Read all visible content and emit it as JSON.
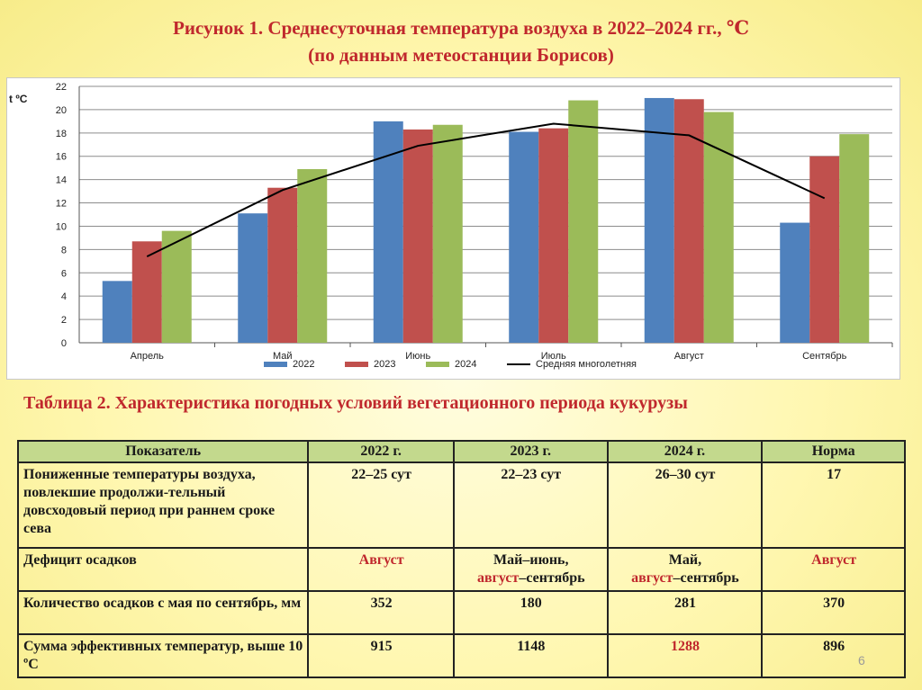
{
  "slide": {
    "title_line1": "Рисунок 1. Среднесуточная температура воздуха в 2022–2024 гг., ℃",
    "title_line2": "(по данным метеостанции Борисов)",
    "page_number": "6"
  },
  "chart_data": {
    "type": "bar",
    "ylabel": "t ºC",
    "ylim": [
      0,
      22
    ],
    "yticks": [
      0,
      2,
      4,
      6,
      8,
      10,
      12,
      14,
      16,
      18,
      20,
      22
    ],
    "categories": [
      "Апрель",
      "Май",
      "Июнь",
      "Июль",
      "Август",
      "Сентябрь"
    ],
    "series": [
      {
        "name": "2022",
        "type": "bar",
        "color": "#4f81bd",
        "values": [
          5.3,
          11.1,
          19.0,
          18.1,
          21.0,
          10.3
        ]
      },
      {
        "name": "2023",
        "type": "bar",
        "color": "#c0504d",
        "values": [
          8.7,
          13.3,
          18.3,
          18.4,
          20.9,
          16.0
        ]
      },
      {
        "name": "2024",
        "type": "bar",
        "color": "#9bbb59",
        "values": [
          9.6,
          14.9,
          18.7,
          20.8,
          19.8,
          17.9
        ]
      },
      {
        "name": "Средняя многолетняя",
        "type": "line",
        "color": "#000000",
        "values": [
          7.4,
          13.1,
          16.9,
          18.8,
          17.8,
          12.4
        ]
      }
    ],
    "grid": true,
    "legend_position": "bottom"
  },
  "table": {
    "title": "Таблица 2. Характеристика погодных условий вегетационного периода кукурузы",
    "headers": [
      "Показатель",
      "2022 г.",
      "2023 г.",
      "2024 г.",
      "Норма"
    ],
    "rows": [
      {
        "indicator": "Пониженные температуры воздуха, повлекшие продолжи-тельный довсходовый период при раннем сроке сева",
        "v2022": "22–25 сут",
        "v2023": "22–23 сут",
        "v2024": "26–30 сут",
        "norm": "17"
      },
      {
        "indicator": "Дефицит осадков",
        "v2022": "Август",
        "v2023_a": "Май–июнь,",
        "v2023_b": "август",
        "v2023_c": "–сентябрь",
        "v2024_a": "Май,",
        "v2024_b": "август",
        "v2024_c": "–сентябрь",
        "norm": "Август"
      },
      {
        "indicator": "Количество осадков с мая по сентябрь, мм",
        "v2022": "352",
        "v2023": "180",
        "v2024": "281",
        "norm": "370"
      },
      {
        "indicator": "Сумма эффективных температур, выше 10 ºС",
        "v2022": "915",
        "v2023": "1148",
        "v2024": "1288",
        "norm": "896"
      }
    ]
  },
  "colors": {
    "title_red": "#c0282d",
    "header_green": "#c3d98d"
  }
}
